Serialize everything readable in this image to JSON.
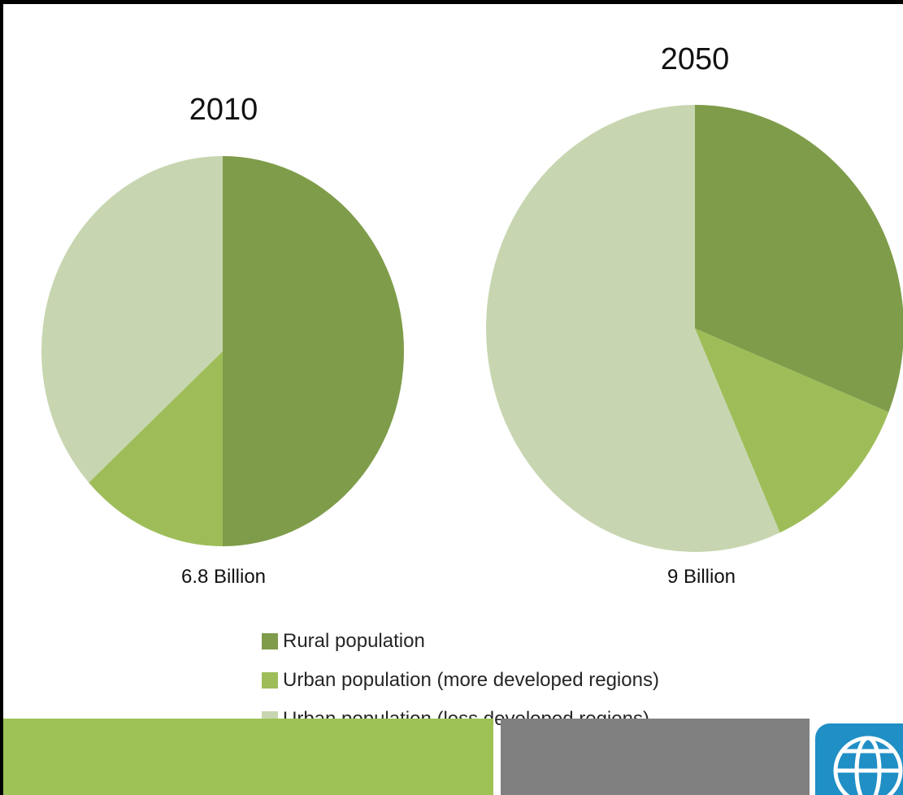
{
  "chart_data": [
    {
      "type": "pie",
      "title": "2010",
      "total_label": "6.8 Billion",
      "categories": [
        "Rural population",
        "Urban population (more developed regions)",
        "Urban population (less developed regions)"
      ],
      "values": [
        3.4,
        0.9,
        2.5
      ],
      "unit": "billion",
      "colors": [
        "#7f9c4a",
        "#9ebd59",
        "#c7d6b0"
      ]
    },
    {
      "type": "pie",
      "title": "2050",
      "total_label": "9 Billion",
      "categories": [
        "Rural population",
        "Urban population (more developed regions)",
        "Urban population (less developed regions)"
      ],
      "values": [
        2.8,
        1.1,
        5.1
      ],
      "unit": "billion",
      "colors": [
        "#7f9c4a",
        "#9ebd59",
        "#c7d6b0"
      ]
    }
  ],
  "legend": {
    "items": [
      {
        "label": "Rural population",
        "color": "#7f9c4a"
      },
      {
        "label": "Urban population (more developed regions)",
        "color": "#9ebd59"
      },
      {
        "label": "Urban population (less developed regions)",
        "color": "#c7d6b0"
      }
    ]
  },
  "footer": {
    "green": "#9ec256",
    "gray": "#808080",
    "logo_icon": "world-bank-globe-icon"
  }
}
